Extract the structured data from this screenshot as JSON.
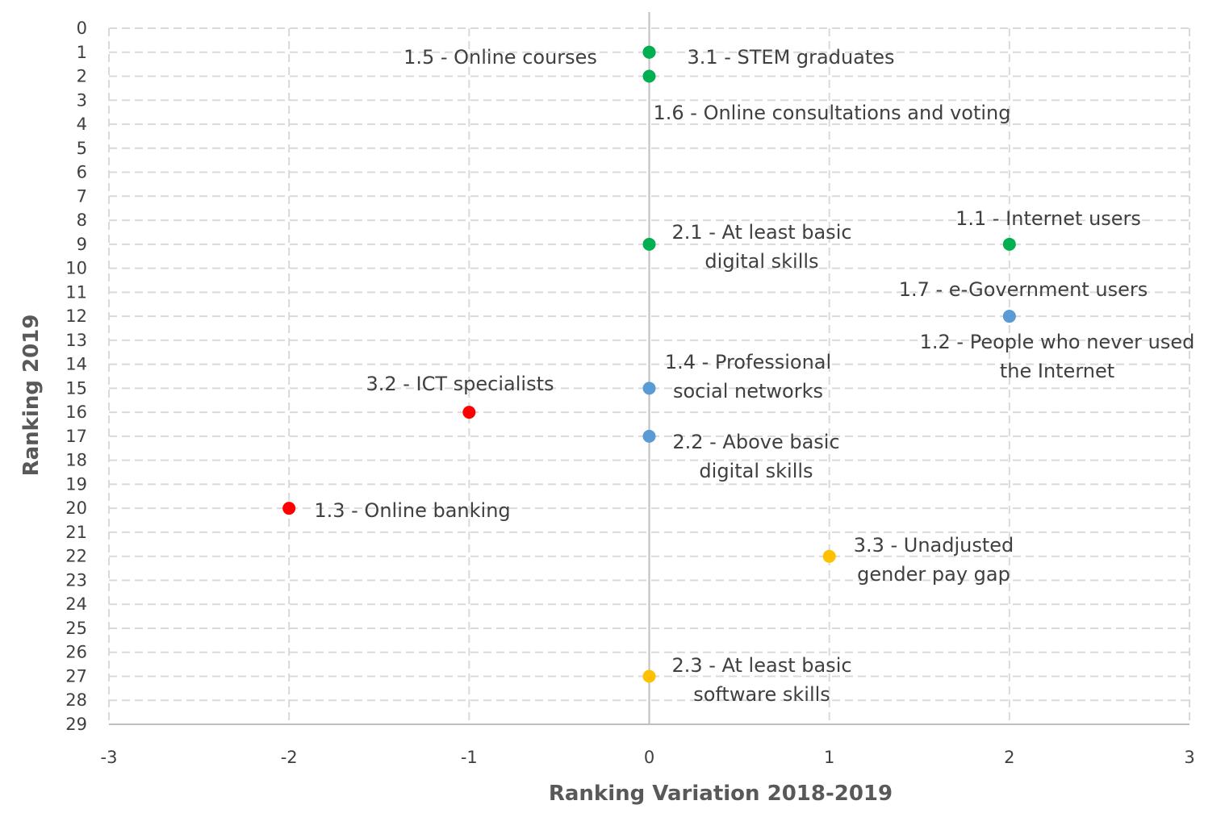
{
  "chart_data": {
    "type": "scatter",
    "title": "",
    "xlabel": "Ranking Variation 2018-2019",
    "ylabel": "Ranking 2019",
    "xlim": [
      -3,
      3
    ],
    "ylim": [
      0,
      29
    ],
    "y_inverted": true,
    "grid": true,
    "grid_style": "dashed",
    "x_ticks": [
      "-3",
      "-2",
      "-1",
      "0",
      "1",
      "2",
      "3"
    ],
    "y_ticks": [
      "0",
      "1",
      "2",
      "3",
      "4",
      "5",
      "6",
      "7",
      "8",
      "9",
      "10",
      "11",
      "12",
      "13",
      "14",
      "15",
      "16",
      "17",
      "18",
      "19",
      "20",
      "21",
      "22",
      "23",
      "24",
      "25",
      "26",
      "27",
      "28",
      "29"
    ],
    "colors": {
      "green": "#00b050",
      "blue": "#5b9bd5",
      "red": "#ff0000",
      "yellow": "#ffc000"
    },
    "points": [
      {
        "x": 0,
        "y": 1,
        "color": "#00b050",
        "label_lines": [
          "1.5 - Online courses"
        ]
      },
      {
        "x": 0,
        "y": 1,
        "color": "#00b050",
        "label_lines": [
          "3.1 - STEM graduates"
        ]
      },
      {
        "x": 0,
        "y": 2,
        "color": "#00b050",
        "label_lines": [
          "1.6 - Online consultations and voting"
        ]
      },
      {
        "x": 0,
        "y": 9,
        "color": "#00b050",
        "label_lines": [
          "2.1 - At least basic",
          "digital skills"
        ]
      },
      {
        "x": 2,
        "y": 9,
        "color": "#00b050",
        "label_lines": [
          "1.1 - Internet users"
        ]
      },
      {
        "x": 2,
        "y": 12,
        "color": "#5b9bd5",
        "label_lines": [
          "1.7 - e-Government users"
        ]
      },
      {
        "x": 2,
        "y": 12,
        "color": "#5b9bd5",
        "label_lines": [
          "1.2 - People who never used",
          "the Internet"
        ]
      },
      {
        "x": 0,
        "y": 15,
        "color": "#5b9bd5",
        "label_lines": [
          "1.4 - Professional",
          "social networks"
        ]
      },
      {
        "x": -1,
        "y": 16,
        "color": "#ff0000",
        "label_lines": [
          "3.2 - ICT specialists"
        ]
      },
      {
        "x": 0,
        "y": 17,
        "color": "#5b9bd5",
        "label_lines": [
          "2.2 - Above basic",
          "digital skills"
        ]
      },
      {
        "x": -2,
        "y": 20,
        "color": "#ff0000",
        "label_lines": [
          "1.3 - Online banking"
        ]
      },
      {
        "x": 1,
        "y": 22,
        "color": "#ffc000",
        "label_lines": [
          "3.3 - Unadjusted",
          "gender pay gap"
        ]
      },
      {
        "x": 0,
        "y": 27,
        "color": "#ffc000",
        "label_lines": [
          "2.3 - At least basic",
          "software skills"
        ]
      }
    ]
  }
}
